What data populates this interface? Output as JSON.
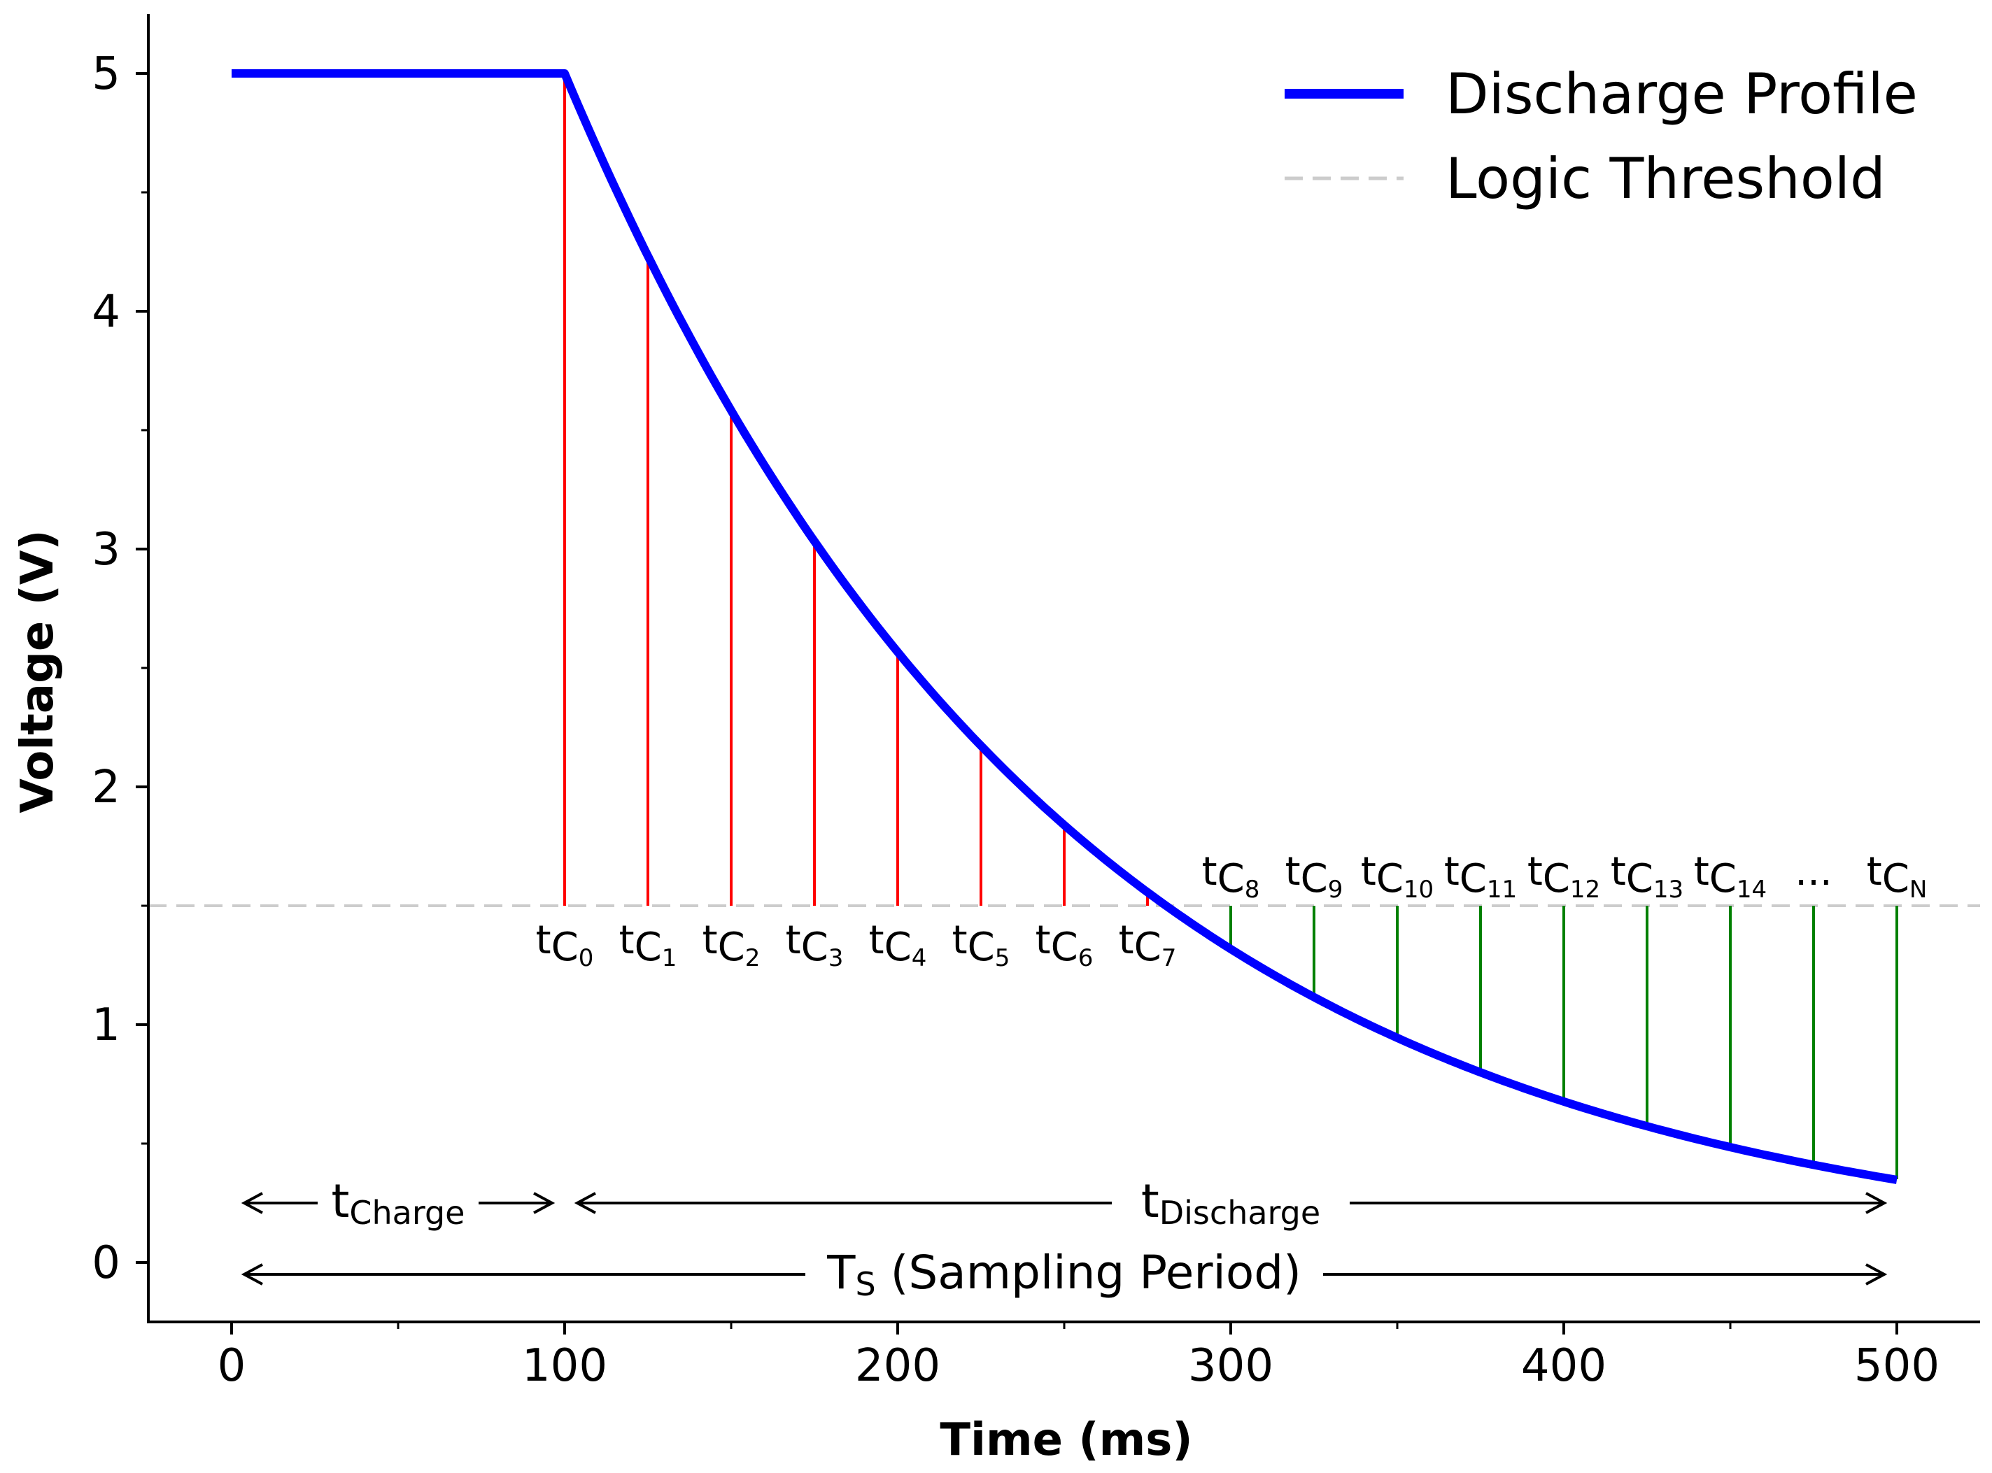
{
  "chart_data": {
    "type": "line",
    "xlabel": "Time (ms)",
    "ylabel": "Voltage (V)",
    "xlim": [
      -25,
      525
    ],
    "ylim": [
      -0.25,
      5.25
    ],
    "xticks": [
      0,
      100,
      200,
      300,
      400,
      500
    ],
    "yticks": [
      0,
      1,
      2,
      3,
      4,
      5
    ],
    "series": [
      {
        "name": "Discharge Profile",
        "color": "#0000ff",
        "style": "solid",
        "model": "V(t) = 5 for t <= 100; V(t) = 5 * exp(-(t - 100) / 150) for t > 100",
        "x": [
          0,
          100,
          125,
          150,
          175,
          200,
          225,
          250,
          275,
          300,
          325,
          350,
          375,
          400,
          425,
          450,
          475,
          500
        ],
        "y": [
          5.0,
          5.0,
          4.23,
          3.58,
          3.03,
          2.57,
          2.17,
          1.84,
          1.56,
          1.32,
          1.12,
          0.94,
          0.8,
          0.68,
          0.57,
          0.49,
          0.41,
          0.35
        ]
      },
      {
        "name": "Logic Threshold",
        "color": "#cccccc",
        "style": "dashed",
        "y": 1.5
      }
    ],
    "samples": [
      {
        "base": "t",
        "sub": "C",
        "idx": "0",
        "x": 100,
        "y": 5.0,
        "state": "above"
      },
      {
        "base": "t",
        "sub": "C",
        "idx": "1",
        "x": 125,
        "y": 4.23,
        "state": "above"
      },
      {
        "base": "t",
        "sub": "C",
        "idx": "2",
        "x": 150,
        "y": 3.58,
        "state": "above"
      },
      {
        "base": "t",
        "sub": "C",
        "idx": "3",
        "x": 175,
        "y": 3.03,
        "state": "above"
      },
      {
        "base": "t",
        "sub": "C",
        "idx": "4",
        "x": 200,
        "y": 2.57,
        "state": "above"
      },
      {
        "base": "t",
        "sub": "C",
        "idx": "5",
        "x": 225,
        "y": 2.17,
        "state": "above"
      },
      {
        "base": "t",
        "sub": "C",
        "idx": "6",
        "x": 250,
        "y": 1.84,
        "state": "above"
      },
      {
        "base": "t",
        "sub": "C",
        "idx": "7",
        "x": 275,
        "y": 1.56,
        "state": "above"
      },
      {
        "base": "t",
        "sub": "C",
        "idx": "8",
        "x": 300,
        "y": 1.32,
        "state": "below"
      },
      {
        "base": "t",
        "sub": "C",
        "idx": "9",
        "x": 325,
        "y": 1.12,
        "state": "below"
      },
      {
        "base": "t",
        "sub": "C",
        "idx": "10",
        "x": 350,
        "y": 0.94,
        "state": "below"
      },
      {
        "base": "t",
        "sub": "C",
        "idx": "11",
        "x": 375,
        "y": 0.8,
        "state": "below"
      },
      {
        "base": "t",
        "sub": "C",
        "idx": "12",
        "x": 400,
        "y": 0.68,
        "state": "below"
      },
      {
        "base": "t",
        "sub": "C",
        "idx": "13",
        "x": 425,
        "y": 0.57,
        "state": "below"
      },
      {
        "base": "t",
        "sub": "C",
        "idx": "14",
        "x": 450,
        "y": 0.49,
        "state": "below"
      },
      {
        "base": "...",
        "sub": "",
        "idx": "",
        "x": 475,
        "y": 0.41,
        "state": "below"
      },
      {
        "base": "t",
        "sub": "C",
        "idx": "N",
        "x": 500,
        "y": 0.35,
        "state": "below"
      }
    ],
    "sample_colors": {
      "above": "#ff0000",
      "below": "#008000"
    },
    "spans": [
      {
        "name": "charge",
        "base": "t",
        "sub": "Charge",
        "start": 0,
        "end": 100,
        "y": 0.25
      },
      {
        "name": "discharge",
        "base": "t",
        "sub": "Discharge",
        "start": 100,
        "end": 500,
        "y": 0.25
      },
      {
        "name": "sampling-period",
        "base": "T",
        "sub": "S",
        "suffix": " (Sampling Period)",
        "start": 0,
        "end": 500,
        "y": -0.05
      }
    ],
    "legend": {
      "position": "top-right",
      "entries": [
        "Discharge Profile",
        "Logic Threshold"
      ]
    }
  }
}
